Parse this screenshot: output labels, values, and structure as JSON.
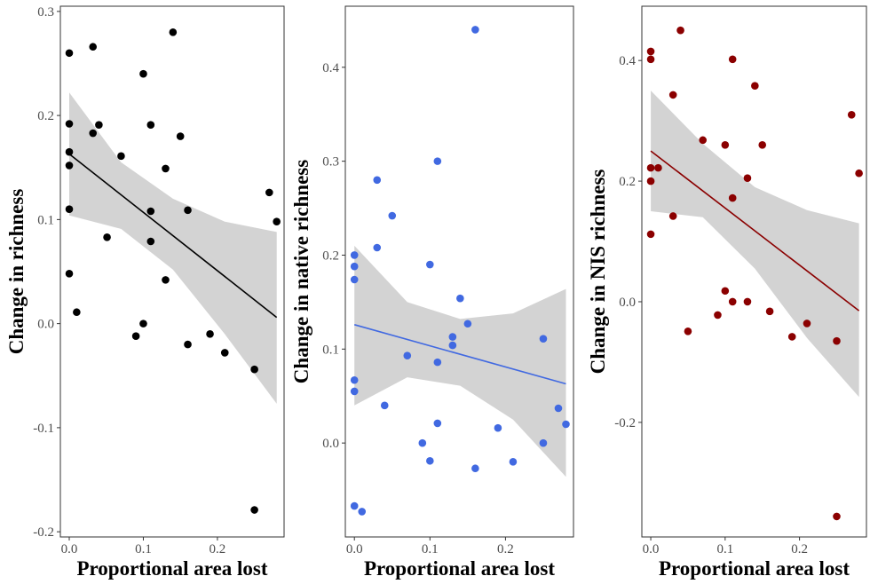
{
  "chart_data": [
    {
      "type": "scatter",
      "xlabel": "Proportional area lost",
      "ylabel": "Change in richness",
      "xlim": [
        -0.012,
        0.29
      ],
      "ylim": [
        -0.205,
        0.305
      ],
      "xticks": [
        0.0,
        0.1,
        0.2
      ],
      "xtick_labels": [
        "0.0",
        "0.1",
        "0.2"
      ],
      "yticks": [
        -0.2,
        -0.1,
        0.0,
        0.1,
        0.2,
        0.3
      ],
      "ytick_labels": [
        "-0.2",
        "-0.1",
        "0.0",
        "0.1",
        "0.2",
        "0.3"
      ],
      "grid": false,
      "color": "#000000",
      "band_color": "#d3d3d3",
      "points": [
        {
          "x": 0.0,
          "y": 0.26
        },
        {
          "x": 0.0,
          "y": 0.192
        },
        {
          "x": 0.0,
          "y": 0.165
        },
        {
          "x": 0.0,
          "y": 0.152
        },
        {
          "x": 0.0,
          "y": 0.11
        },
        {
          "x": 0.0,
          "y": 0.048
        },
        {
          "x": 0.01,
          "y": 0.011
        },
        {
          "x": 0.032,
          "y": 0.266
        },
        {
          "x": 0.032,
          "y": 0.183
        },
        {
          "x": 0.04,
          "y": 0.191
        },
        {
          "x": 0.051,
          "y": 0.083
        },
        {
          "x": 0.07,
          "y": 0.161
        },
        {
          "x": 0.09,
          "y": -0.012
        },
        {
          "x": 0.1,
          "y": 0.24
        },
        {
          "x": 0.1,
          "y": 0.0
        },
        {
          "x": 0.11,
          "y": 0.191
        },
        {
          "x": 0.11,
          "y": 0.108
        },
        {
          "x": 0.11,
          "y": 0.079
        },
        {
          "x": 0.13,
          "y": 0.149
        },
        {
          "x": 0.13,
          "y": 0.042
        },
        {
          "x": 0.14,
          "y": 0.28
        },
        {
          "x": 0.15,
          "y": 0.18
        },
        {
          "x": 0.16,
          "y": 0.109
        },
        {
          "x": 0.16,
          "y": -0.02
        },
        {
          "x": 0.19,
          "y": -0.01
        },
        {
          "x": 0.21,
          "y": -0.028
        },
        {
          "x": 0.25,
          "y": -0.044
        },
        {
          "x": 0.25,
          "y": -0.179
        },
        {
          "x": 0.27,
          "y": 0.126
        },
        {
          "x": 0.28,
          "y": 0.098
        }
      ],
      "fit": {
        "x": [
          0.0,
          0.28
        ],
        "y": [
          0.163,
          0.006
        ]
      },
      "band": {
        "x": [
          0.0,
          0.07,
          0.14,
          0.21,
          0.28
        ],
        "upper": [
          0.222,
          0.155,
          0.12,
          0.098,
          0.088
        ],
        "lower": [
          0.104,
          0.091,
          0.052,
          -0.01,
          -0.077
        ]
      }
    },
    {
      "type": "scatter",
      "xlabel": "Proportional area lost",
      "ylabel": "Change in native richness",
      "xlim": [
        -0.012,
        0.29
      ],
      "ylim": [
        -0.1,
        0.465
      ],
      "xticks": [
        0.0,
        0.1,
        0.2
      ],
      "xtick_labels": [
        "0.0",
        "0.1",
        "0.2"
      ],
      "yticks": [
        0.0,
        0.1,
        0.2,
        0.3,
        0.4
      ],
      "ytick_labels": [
        "0.0",
        "0.1",
        "0.2",
        "0.3",
        "0.4"
      ],
      "grid": false,
      "color": "#4169e1",
      "band_color": "#d3d3d3",
      "points": [
        {
          "x": 0.0,
          "y": 0.2
        },
        {
          "x": 0.0,
          "y": 0.188
        },
        {
          "x": 0.0,
          "y": 0.174
        },
        {
          "x": 0.0,
          "y": 0.067
        },
        {
          "x": 0.0,
          "y": 0.055
        },
        {
          "x": 0.0,
          "y": -0.067
        },
        {
          "x": 0.01,
          "y": -0.073
        },
        {
          "x": 0.03,
          "y": 0.28
        },
        {
          "x": 0.03,
          "y": 0.208
        },
        {
          "x": 0.04,
          "y": 0.04
        },
        {
          "x": 0.05,
          "y": 0.242
        },
        {
          "x": 0.07,
          "y": 0.093
        },
        {
          "x": 0.09,
          "y": 0.0
        },
        {
          "x": 0.1,
          "y": 0.19
        },
        {
          "x": 0.1,
          "y": -0.019
        },
        {
          "x": 0.11,
          "y": 0.3
        },
        {
          "x": 0.11,
          "y": 0.086
        },
        {
          "x": 0.11,
          "y": 0.021
        },
        {
          "x": 0.13,
          "y": 0.113
        },
        {
          "x": 0.13,
          "y": 0.104
        },
        {
          "x": 0.14,
          "y": 0.154
        },
        {
          "x": 0.15,
          "y": 0.127
        },
        {
          "x": 0.16,
          "y": 0.44
        },
        {
          "x": 0.16,
          "y": -0.027
        },
        {
          "x": 0.19,
          "y": 0.016
        },
        {
          "x": 0.21,
          "y": -0.02
        },
        {
          "x": 0.25,
          "y": 0.111
        },
        {
          "x": 0.25,
          "y": 0.0
        },
        {
          "x": 0.27,
          "y": 0.037
        },
        {
          "x": 0.28,
          "y": 0.02
        }
      ],
      "fit": {
        "x": [
          0.0,
          0.28
        ],
        "y": [
          0.126,
          0.063
        ]
      },
      "band": {
        "x": [
          0.0,
          0.07,
          0.14,
          0.21,
          0.28
        ],
        "upper": [
          0.21,
          0.15,
          0.132,
          0.138,
          0.164
        ],
        "lower": [
          0.04,
          0.07,
          0.061,
          0.025,
          -0.036
        ]
      }
    },
    {
      "type": "scatter",
      "xlabel": "Proportional area lost",
      "ylabel": "Change in NIS richness",
      "xlim": [
        -0.012,
        0.29
      ],
      "ylim": [
        -0.39,
        0.49
      ],
      "xticks": [
        0.0,
        0.1,
        0.2
      ],
      "xtick_labels": [
        "0.0",
        "0.1",
        "0.2"
      ],
      "yticks": [
        -0.2,
        0.0,
        0.2,
        0.4
      ],
      "ytick_labels": [
        "-0.2",
        "0.0",
        "0.2",
        "0.4"
      ],
      "grid": false,
      "color": "#8b0000",
      "band_color": "#d3d3d3",
      "points": [
        {
          "x": 0.0,
          "y": 0.415
        },
        {
          "x": 0.0,
          "y": 0.402
        },
        {
          "x": 0.0,
          "y": 0.222
        },
        {
          "x": 0.0,
          "y": 0.2
        },
        {
          "x": 0.0,
          "y": 0.112
        },
        {
          "x": 0.01,
          "y": 0.222
        },
        {
          "x": 0.03,
          "y": 0.343
        },
        {
          "x": 0.03,
          "y": 0.142
        },
        {
          "x": 0.04,
          "y": 0.45
        },
        {
          "x": 0.05,
          "y": -0.049
        },
        {
          "x": 0.07,
          "y": 0.268
        },
        {
          "x": 0.09,
          "y": -0.022
        },
        {
          "x": 0.1,
          "y": 0.26
        },
        {
          "x": 0.1,
          "y": 0.018
        },
        {
          "x": 0.11,
          "y": 0.402
        },
        {
          "x": 0.11,
          "y": 0.172
        },
        {
          "x": 0.11,
          "y": 0.0
        },
        {
          "x": 0.13,
          "y": 0.205
        },
        {
          "x": 0.13,
          "y": 0.0
        },
        {
          "x": 0.14,
          "y": 0.358
        },
        {
          "x": 0.15,
          "y": 0.26
        },
        {
          "x": 0.16,
          "y": -0.016
        },
        {
          "x": 0.19,
          "y": -0.058
        },
        {
          "x": 0.21,
          "y": -0.036
        },
        {
          "x": 0.25,
          "y": -0.065
        },
        {
          "x": 0.25,
          "y": -0.356
        },
        {
          "x": 0.27,
          "y": 0.31
        },
        {
          "x": 0.28,
          "y": 0.213
        }
      ],
      "fit": {
        "x": [
          0.0,
          0.28
        ],
        "y": [
          0.25,
          -0.015
        ]
      },
      "band": {
        "x": [
          0.0,
          0.07,
          0.14,
          0.21,
          0.28
        ],
        "upper": [
          0.35,
          0.262,
          0.19,
          0.152,
          0.13
        ],
        "lower": [
          0.15,
          0.14,
          0.055,
          -0.06,
          -0.158
        ]
      }
    }
  ]
}
